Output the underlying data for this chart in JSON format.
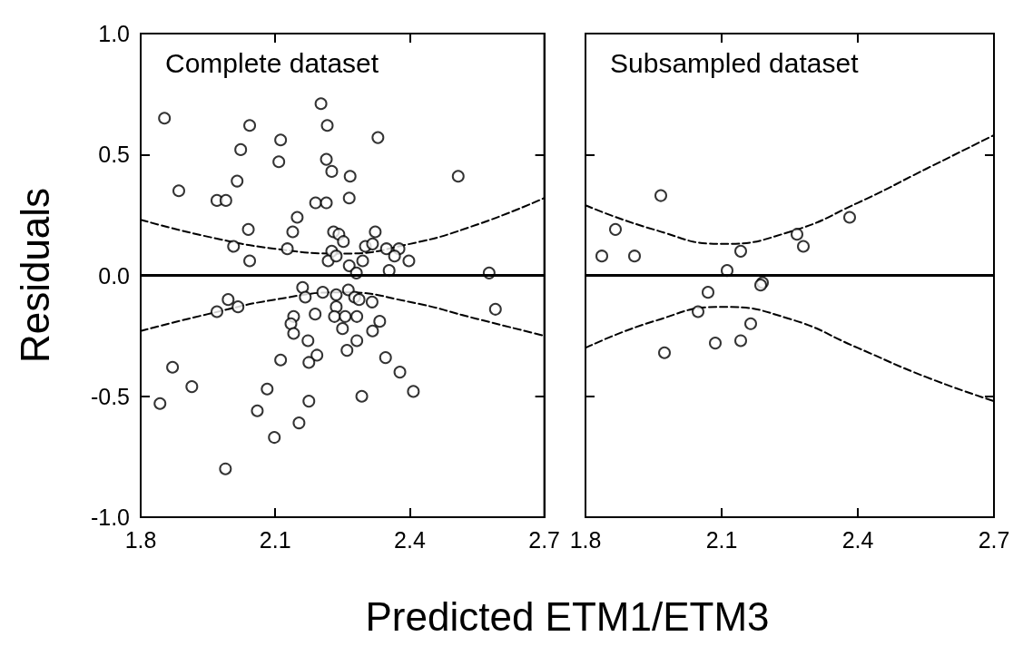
{
  "chart_data": [
    {
      "type": "scatter",
      "title": "Complete dataset",
      "xlabel": "Predicted ETM1/ETM3",
      "ylabel": "Residuals",
      "xlim": [
        1.8,
        2.7
      ],
      "ylim": [
        -1,
        1
      ],
      "xticks": [
        1.8,
        2.1,
        2.4,
        2.7
      ],
      "yticks": [
        {
          "value": -1,
          "label": "-1.0"
        },
        {
          "value": -0.5,
          "label": "-0.5"
        },
        {
          "value": 0,
          "label": "0.0"
        },
        {
          "value": 0.5,
          "label": "0.5"
        },
        {
          "value": 1,
          "label": "1.0"
        }
      ],
      "grid": false,
      "marker": "circle",
      "ref_lines": [
        {
          "axis": "y",
          "value": 0,
          "line_style": "solid",
          "color": "#000000"
        }
      ],
      "series": [
        {
          "color": "#000000",
          "x": [
            1.853,
            1.885,
            1.97,
            1.99,
            2.015,
            2.023,
            2.043,
            2.04,
            2.007,
            2.043,
            2.112,
            2.108,
            2.127,
            2.139,
            2.149,
            2.202,
            2.216,
            2.214,
            2.226,
            2.19,
            2.214,
            2.267,
            2.265,
            2.329,
            2.508,
            2.23,
            2.242,
            2.252,
            2.226,
            2.218,
            2.236,
            2.301,
            2.317,
            2.323,
            2.348,
            2.376,
            2.366,
            2.398,
            2.295,
            2.265,
            2.354,
            2.281,
            2.577,
            2.161,
            2.167,
            2.206,
            2.236,
            2.263,
            2.277,
            2.287,
            2.316,
            1.995,
            1.97,
            2.017,
            2.591,
            2.189,
            2.236,
            2.232,
            2.256,
            2.282,
            2.141,
            2.135,
            2.141,
            2.25,
            2.333,
            2.317,
            2.173,
            2.282,
            2.26,
            2.193,
            2.175,
            2.112,
            2.346,
            2.378,
            2.408,
            1.871,
            1.914,
            1.843,
            2.082,
            2.175,
            2.293,
            2.06,
            2.153,
            2.098,
            1.989
          ],
          "values": [
            0.65,
            0.35,
            0.31,
            0.31,
            0.39,
            0.52,
            0.62,
            0.19,
            0.12,
            0.06,
            0.56,
            0.47,
            0.11,
            0.18,
            0.24,
            0.71,
            0.62,
            0.48,
            0.43,
            0.3,
            0.3,
            0.41,
            0.32,
            0.57,
            0.41,
            0.18,
            0.17,
            0.14,
            0.1,
            0.06,
            0.08,
            0.12,
            0.13,
            0.18,
            0.11,
            0.11,
            0.08,
            0.06,
            0.06,
            0.04,
            0.02,
            0.01,
            0.01,
            -0.05,
            -0.09,
            -0.07,
            -0.08,
            -0.06,
            -0.09,
            -0.1,
            -0.11,
            -0.1,
            -0.15,
            -0.13,
            -0.14,
            -0.16,
            -0.13,
            -0.17,
            -0.17,
            -0.17,
            -0.17,
            -0.2,
            -0.24,
            -0.22,
            -0.19,
            -0.23,
            -0.27,
            -0.27,
            -0.31,
            -0.33,
            -0.36,
            -0.35,
            -0.34,
            -0.4,
            -0.48,
            -0.38,
            -0.46,
            -0.53,
            -0.47,
            -0.52,
            -0.5,
            -0.56,
            -0.61,
            -0.67,
            -0.8
          ]
        },
        {
          "type": "line",
          "color": "#000000",
          "marker": "none",
          "line_style": "dashed",
          "x": [
            1.8,
            1.95,
            2.1,
            2.25,
            2.4,
            2.55,
            2.7
          ],
          "values": [
            0.23,
            0.16,
            0.11,
            0.09,
            0.13,
            0.21,
            0.32
          ]
        },
        {
          "type": "line",
          "color": "#000000",
          "marker": "none",
          "line_style": "dashed",
          "x": [
            1.8,
            1.95,
            2.1,
            2.25,
            2.4,
            2.55,
            2.7
          ],
          "values": [
            -0.23,
            -0.16,
            -0.1,
            -0.07,
            -0.11,
            -0.18,
            -0.25
          ]
        }
      ]
    },
    {
      "type": "scatter",
      "title": "Subsampled dataset",
      "xlim": [
        1.8,
        2.7
      ],
      "ylim": [
        -1,
        1
      ],
      "xticks": [
        1.8,
        2.1,
        2.4,
        2.7
      ],
      "yticks": [
        {
          "value": -1,
          "label": null
        },
        {
          "value": -0.5,
          "label": null
        },
        {
          "value": 0,
          "label": null
        },
        {
          "value": 0.5,
          "label": null
        },
        {
          "value": 1,
          "label": null
        }
      ],
      "tick_labels": "x",
      "grid": false,
      "marker": "circle",
      "ref_lines": [
        {
          "axis": "y",
          "value": 0,
          "line_style": "solid",
          "color": "#000000"
        }
      ],
      "series": [
        {
          "color": "#000000",
          "x": [
            1.966,
            1.866,
            1.836,
            1.908,
            2.142,
            2.112,
            2.266,
            2.28,
            2.382,
            2.19,
            2.186,
            2.07,
            2.048,
            2.164,
            2.086,
            2.142,
            1.974
          ],
          "values": [
            0.33,
            0.19,
            0.08,
            0.08,
            0.1,
            0.02,
            0.17,
            0.12,
            0.24,
            -0.03,
            -0.04,
            -0.07,
            -0.15,
            -0.2,
            -0.28,
            -0.27,
            -0.32
          ]
        },
        {
          "type": "line",
          "color": "#000000",
          "marker": "none",
          "line_style": "dashed",
          "x": [
            1.8,
            1.95,
            2.1,
            2.25,
            2.4,
            2.55,
            2.7
          ],
          "values": [
            0.29,
            0.19,
            0.13,
            0.18,
            0.3,
            0.44,
            0.58
          ]
        },
        {
          "type": "line",
          "color": "#000000",
          "marker": "none",
          "line_style": "dashed",
          "x": [
            1.8,
            1.95,
            2.1,
            2.25,
            2.4,
            2.55,
            2.7
          ],
          "values": [
            -0.3,
            -0.19,
            -0.13,
            -0.18,
            -0.3,
            -0.42,
            -0.52
          ]
        }
      ]
    }
  ]
}
